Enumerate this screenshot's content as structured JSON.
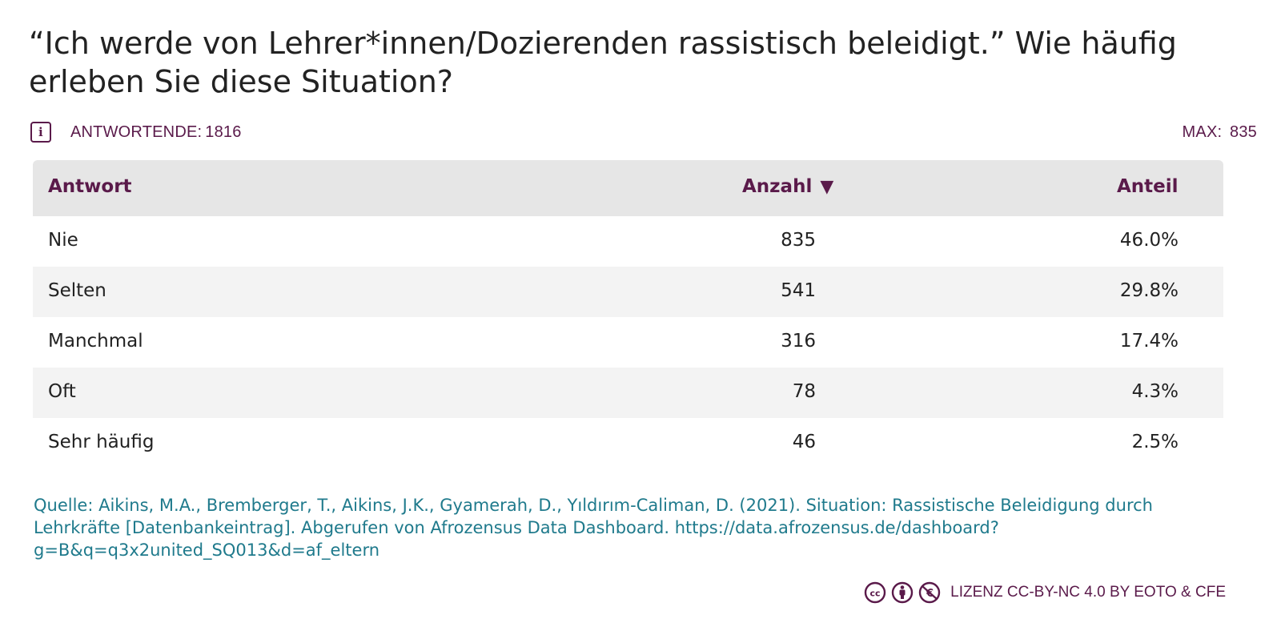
{
  "title": "“Ich werde von Lehrer*innen/Dozierenden rassistisch beleidigt.” Wie häufig erleben Sie diese Situation?",
  "meta": {
    "respondents_label": "ANTWORTENDE:",
    "respondents_value": "1816",
    "max_label": "MAX:",
    "max_value": "835"
  },
  "table": {
    "headers": {
      "answer": "Antwort",
      "count": "Anzahl",
      "share": "Anteil",
      "sort_indicator": "▼"
    },
    "rows": [
      {
        "answer": "Nie",
        "count": "835",
        "share": "46.0%"
      },
      {
        "answer": "Selten",
        "count": "541",
        "share": "29.8%"
      },
      {
        "answer": "Manchmal",
        "count": "316",
        "share": "17.4%"
      },
      {
        "answer": "Oft",
        "count": "78",
        "share": "4.3%"
      },
      {
        "answer": "Sehr häufig",
        "count": "46",
        "share": "2.5%"
      }
    ]
  },
  "source": "Quelle: Aikins, M.A., Bremberger, T., Aikins, J.K., Gyamerah, D., Yıldırım-Caliman, D. (2021). Situation: Rassistische Beleidigung durch Lehrkräfte [Datenbankeintrag]. Abgerufen von Afrozensus Data Dashboard. https://data.afrozensus.de/dashboard?g=B&q=q3x2united_SQ013&d=af_eltern",
  "license": {
    "text": "LIZENZ CC-BY-NC 4.0 BY EOTO & CFE",
    "icons": [
      "cc-icon",
      "by-icon",
      "nc-icon"
    ]
  },
  "colors": {
    "accent": "#5a1a4a",
    "source_link": "#1f7a8c",
    "header_bg": "#e6e6e6",
    "row_alt_bg": "#f3f3f3"
  },
  "chart_data": {
    "type": "table",
    "title": "“Ich werde von Lehrer*innen/Dozierenden rassistisch beleidigt.” Wie häufig erleben Sie diese Situation?",
    "columns": [
      "Antwort",
      "Anzahl",
      "Anteil"
    ],
    "categories": [
      "Nie",
      "Selten",
      "Manchmal",
      "Oft",
      "Sehr häufig"
    ],
    "series": [
      {
        "name": "Anzahl",
        "values": [
          835,
          541,
          316,
          78,
          46
        ]
      },
      {
        "name": "Anteil",
        "values": [
          46.0,
          29.8,
          17.4,
          4.3,
          2.5
        ]
      }
    ],
    "total": 1816,
    "max": 835
  }
}
